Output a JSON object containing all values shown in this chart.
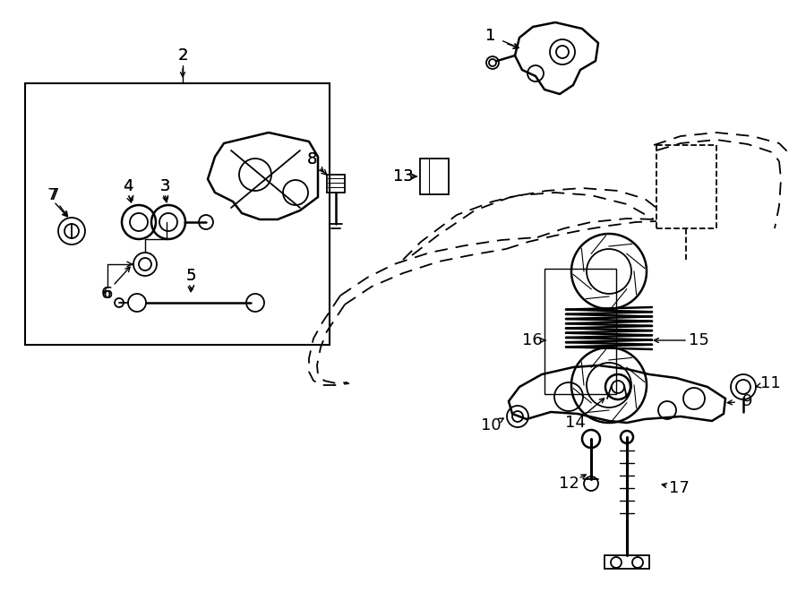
{
  "bg_color": "#ffffff",
  "line_color": "#000000",
  "fig_width": 9.0,
  "fig_height": 6.61,
  "font_size": 13
}
